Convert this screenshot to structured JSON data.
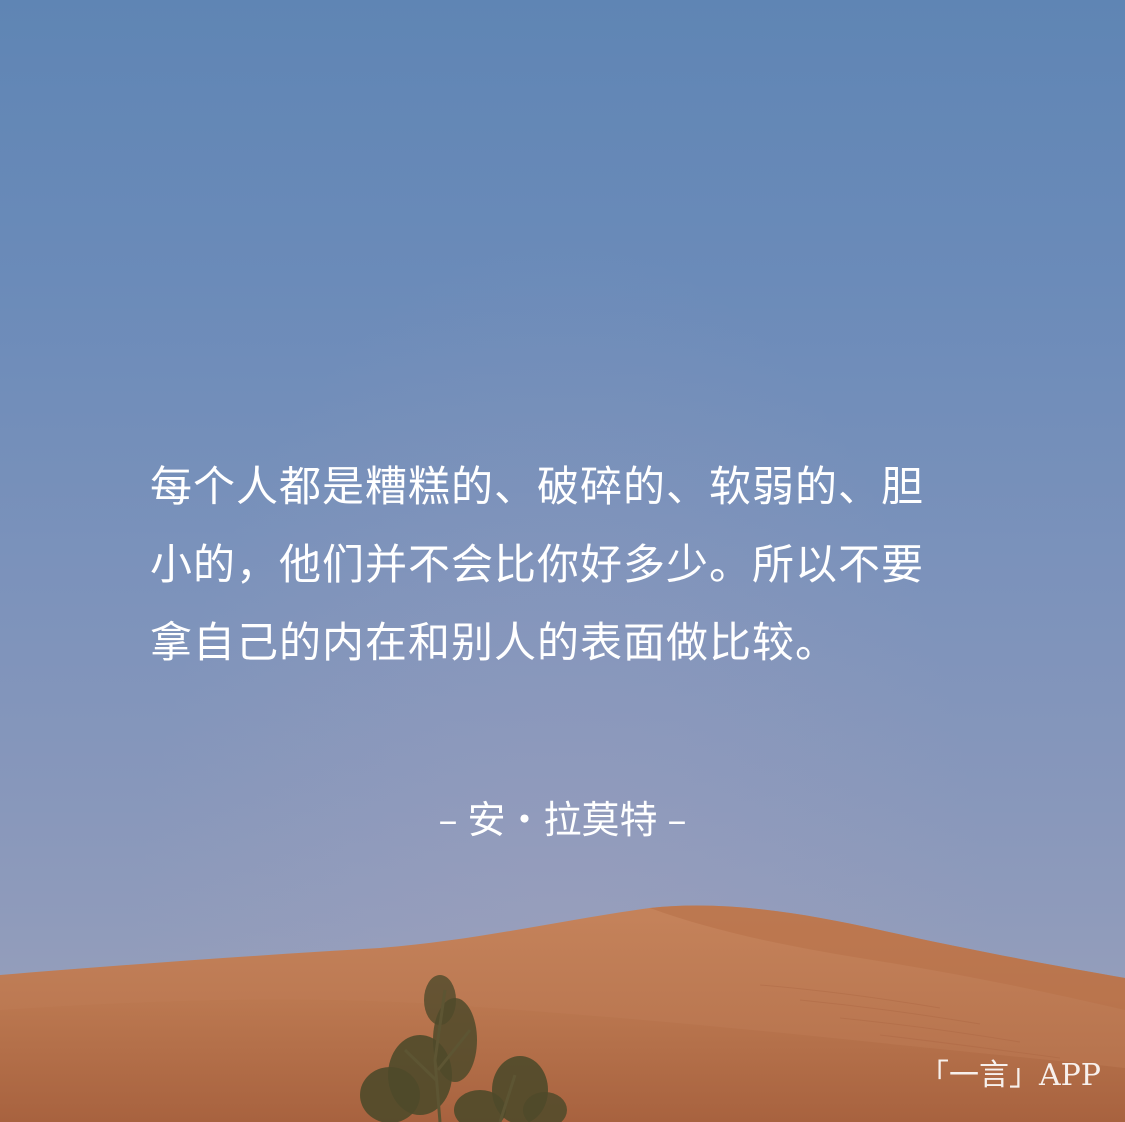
{
  "quote": {
    "lines": [
      "每个人都是糟糕的、破碎的、软弱的、胆",
      "小的，他们并不会比你好多少。所以不要",
      "拿自己的内在和别人的表面做比较。"
    ]
  },
  "author": {
    "dash_left": "–",
    "name": "安・拉莫特",
    "dash_right": "–"
  },
  "watermark": {
    "text": "「一言」APP"
  },
  "colors": {
    "sky_top": "#5f85b4",
    "sky_bottom": "#969fbb",
    "sand_light": "#c07e57",
    "sand_dark": "#a8623f",
    "text": "#ffffff"
  }
}
